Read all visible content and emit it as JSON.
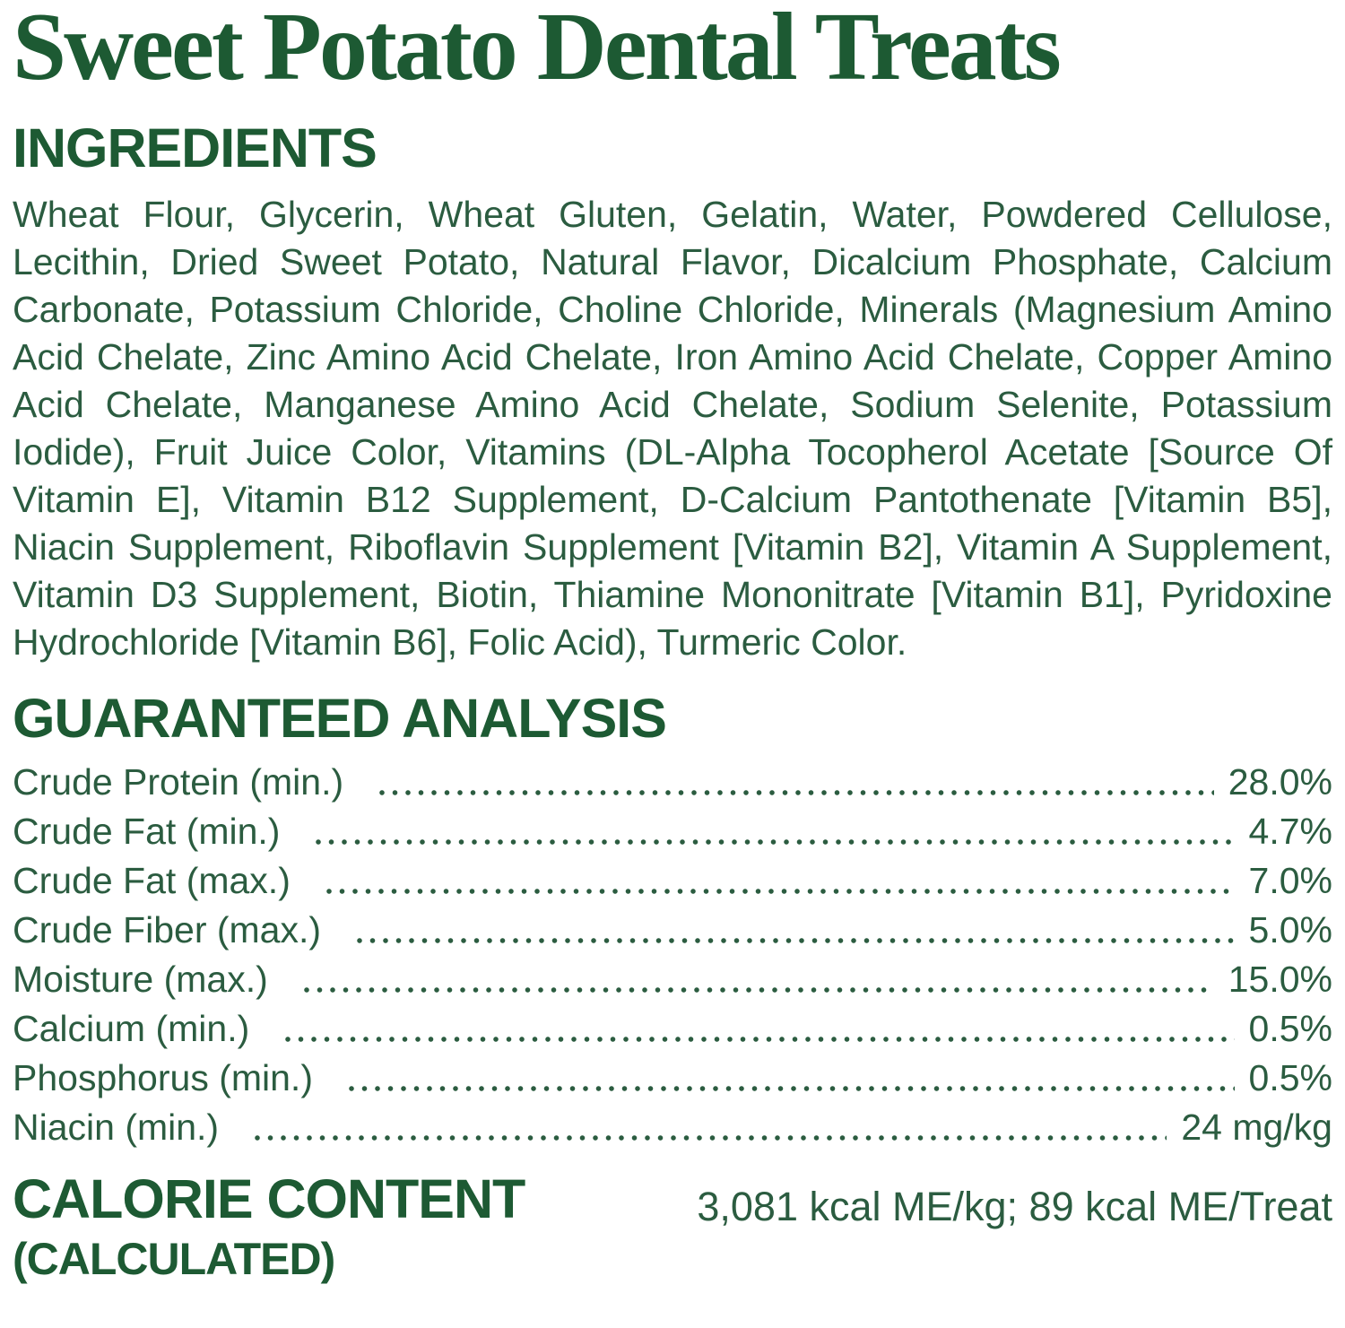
{
  "product": {
    "title": "Sweet Potato Dental Treats"
  },
  "ingredients": {
    "heading": "INGREDIENTS",
    "text": "Wheat Flour, Glycerin, Wheat Gluten, Gelatin, Water, Powdered Cellulose, Lecithin, Dried Sweet Potato, Natural Flavor, Dicalcium Phosphate, Calcium Carbonate, Potassium Chloride, Choline Chloride, Minerals (Magnesium Amino Acid Chelate, Zinc Amino Acid Chelate, Iron Amino Acid Chelate, Copper Amino Acid Chelate, Manganese Amino Acid Chelate, Sodium Selenite, Potassium Iodide), Fruit Juice Color, Vitamins (DL-Alpha Tocopherol Acetate [Source Of Vitamin E], Vitamin B12 Supplement, D-Calcium Pantothenate [Vitamin B5], Niacin Supplement, Riboflavin Supplement [Vitamin B2], Vitamin A Supplement, Vitamin D3 Supplement, Biotin, Thiamine Mononitrate [Vitamin B1], Pyridoxine Hydrochloride [Vitamin B6], Folic Acid), Turmeric Color."
  },
  "guaranteed_analysis": {
    "heading": "GUARANTEED ANALYSIS",
    "rows": [
      {
        "label": "Crude Protein (min.)",
        "value": "28.0%"
      },
      {
        "label": "Crude Fat (min.)",
        "value": "4.7%"
      },
      {
        "label": "Crude Fat (max.)",
        "value": "7.0%"
      },
      {
        "label": "Crude Fiber (max.)",
        "value": "5.0%"
      },
      {
        "label": "Moisture (max.)",
        "value": "15.0%"
      },
      {
        "label": "Calcium (min.)",
        "value": "0.5%"
      },
      {
        "label": "Phosphorus (min.)",
        "value": "0.5%"
      },
      {
        "label": "Niacin (min.)",
        "value": "24 mg/kg"
      }
    ]
  },
  "calorie_content": {
    "heading_line1": "CALORIE CONTENT",
    "heading_line2": "(CALCULATED)",
    "value": "3,081 kcal ME/kg; 89 kcal ME/Treat"
  },
  "colors": {
    "heading_green": "#1d5a33",
    "body_green": "#2b5c40",
    "background": "#ffffff"
  }
}
